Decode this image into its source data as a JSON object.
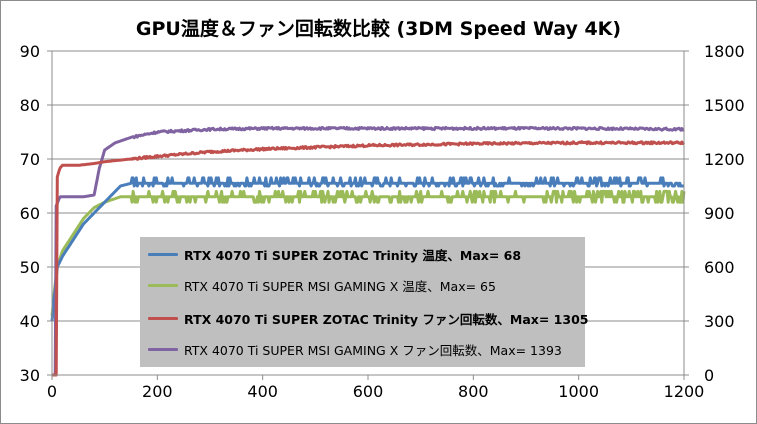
{
  "chart_data": {
    "type": "line",
    "title": "GPU温度＆ファン回転数比較 (3DM Speed Way 4K)",
    "xlabel": "",
    "ylabel": "",
    "xlim": [
      0,
      1200
    ],
    "ylim_left": [
      30,
      90
    ],
    "ylim_right": [
      0,
      1800
    ],
    "x_ticks": [
      "0",
      "200",
      "400",
      "600",
      "800",
      "1000",
      "1200"
    ],
    "y_left_ticks": [
      "30",
      "40",
      "50",
      "60",
      "70",
      "80",
      "90"
    ],
    "y_right_ticks": [
      "0",
      "300",
      "600",
      "900",
      "1200",
      "1500",
      "1800"
    ],
    "grid": "horizontal",
    "legend_position": "inside-lower-center",
    "series": [
      {
        "name": "RTX 4070 Ti SUPER ZOTAC Trinity 温度、Max= 68",
        "axis": "left",
        "color": "#4a7ebb",
        "bold": true,
        "points": [
          [
            0,
            40
          ],
          [
            5,
            45
          ],
          [
            10,
            50
          ],
          [
            20,
            52
          ],
          [
            40,
            55
          ],
          [
            60,
            58
          ],
          [
            80,
            60
          ],
          [
            100,
            62
          ],
          [
            120,
            64
          ],
          [
            130,
            65
          ],
          [
            150,
            65.5
          ],
          [
            200,
            65.5
          ],
          [
            400,
            65.5
          ],
          [
            600,
            65.5
          ],
          [
            800,
            65.5
          ],
          [
            1000,
            65.5
          ],
          [
            1200,
            65.5
          ]
        ],
        "dips": 65,
        "peaks": 66.5
      },
      {
        "name": "RTX 4070 Ti SUPER MSI GAMING X 温度、Max= 65",
        "axis": "left",
        "color": "#9bbb59",
        "bold": false,
        "points": [
          [
            0,
            41
          ],
          [
            5,
            46
          ],
          [
            10,
            50
          ],
          [
            20,
            53
          ],
          [
            40,
            56
          ],
          [
            60,
            59
          ],
          [
            80,
            61
          ],
          [
            100,
            62
          ],
          [
            130,
            63
          ],
          [
            200,
            63
          ],
          [
            400,
            63
          ],
          [
            600,
            63
          ],
          [
            800,
            63
          ],
          [
            1000,
            63
          ],
          [
            1200,
            63
          ]
        ],
        "dips": 62,
        "peaks": 64
      },
      {
        "name": "RTX 4070 Ti SUPER ZOTAC Trinity ファン回転数、Max= 1305",
        "axis": "right",
        "color": "#c0504d",
        "bold": true,
        "points": [
          [
            0,
            0
          ],
          [
            8,
            0
          ],
          [
            10,
            1100
          ],
          [
            15,
            1150
          ],
          [
            20,
            1165
          ],
          [
            50,
            1165
          ],
          [
            80,
            1175
          ],
          [
            100,
            1185
          ],
          [
            150,
            1200
          ],
          [
            200,
            1215
          ],
          [
            300,
            1240
          ],
          [
            400,
            1255
          ],
          [
            500,
            1265
          ],
          [
            600,
            1275
          ],
          [
            800,
            1285
          ],
          [
            1000,
            1290
          ],
          [
            1200,
            1290
          ]
        ]
      },
      {
        "name": "RTX 4070 Ti SUPER MSI GAMING X ファン回転数、Max= 1393",
        "axis": "right",
        "color": "#8064a2",
        "bold": false,
        "points": [
          [
            0,
            0
          ],
          [
            6,
            0
          ],
          [
            8,
            940
          ],
          [
            15,
            990
          ],
          [
            60,
            990
          ],
          [
            80,
            1000
          ],
          [
            90,
            1150
          ],
          [
            100,
            1250
          ],
          [
            120,
            1290
          ],
          [
            150,
            1320
          ],
          [
            200,
            1350
          ],
          [
            300,
            1365
          ],
          [
            400,
            1370
          ],
          [
            600,
            1370
          ],
          [
            800,
            1370
          ],
          [
            1000,
            1370
          ],
          [
            1200,
            1365
          ]
        ]
      }
    ]
  }
}
